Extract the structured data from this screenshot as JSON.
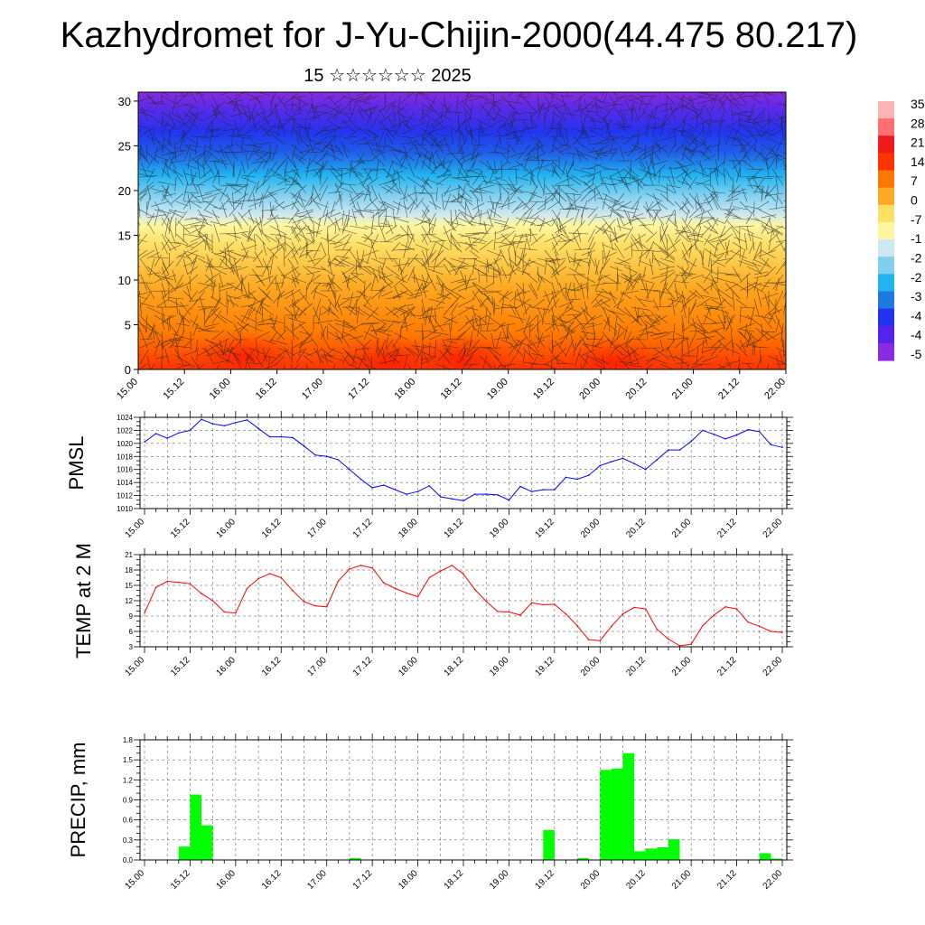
{
  "header": {
    "title": "Kazhydromet for J-Yu-Chijin-2000(44.475 80.217)",
    "subtitle": "15 ☆☆☆☆☆☆ 2025"
  },
  "colors": {
    "pmsl_line": "#0000ff",
    "temp_line": "#ff0000",
    "precip_bar": "#00ff00",
    "colorbar": [
      "#ffb3b3",
      "#ff7070",
      "#ee1a1a",
      "#ff3300",
      "#ff7700",
      "#ffaa22",
      "#ffe066",
      "#fff6a0",
      "#cce8f0",
      "#7fd0f0",
      "#22b4f0",
      "#1e7ae0",
      "#2233f0",
      "#5522ee",
      "#8a2be2"
    ]
  },
  "time_labels": [
    "15.00",
    "15.12",
    "16.00",
    "16.12",
    "17.00",
    "17.12",
    "18.00",
    "18.12",
    "19.00",
    "19.12",
    "20.00",
    "20.12",
    "21.00",
    "21.12",
    "22.00"
  ],
  "chart_data": [
    {
      "type": "heatmap",
      "title": "",
      "ylabel": "",
      "y_ticks": [
        0,
        5,
        10,
        15,
        20,
        25,
        30
      ],
      "ylim": [
        0,
        31
      ],
      "colorbar_labels": [
        "35",
        "28",
        "21",
        "14",
        "7",
        "0",
        "-7",
        "-1",
        "-2",
        "-2",
        "-3",
        "-4",
        "-4",
        "-5"
      ],
      "overlay": "wind barbs"
    },
    {
      "type": "line",
      "ylabel": "PMSL",
      "ylim": [
        1010,
        1024
      ],
      "y_ticks": [
        1010,
        1012,
        1014,
        1016,
        1018,
        1020,
        1022,
        1024
      ],
      "x": [
        0,
        3,
        6,
        9,
        12,
        15,
        18,
        21,
        24,
        27,
        30,
        33,
        36,
        39,
        42,
        45,
        48,
        51,
        54,
        57,
        60,
        63,
        66,
        69,
        72,
        75,
        78,
        81,
        84,
        87,
        90,
        93,
        96,
        99,
        102,
        105,
        108,
        111,
        114,
        117,
        120,
        123,
        126,
        129,
        132,
        135,
        138,
        141,
        144,
        147,
        150,
        153,
        156,
        159,
        162,
        165,
        168
      ],
      "values": [
        1020.2,
        1021.5,
        1020.8,
        1021.6,
        1022,
        1023.7,
        1023,
        1022.7,
        1023.2,
        1023.6,
        1022.3,
        1021,
        1021,
        1020.9,
        1019.6,
        1018.2,
        1018,
        1017.5,
        1016,
        1014.5,
        1013.2,
        1013.6,
        1012.9,
        1012.2,
        1012.6,
        1013.5,
        1011.8,
        1011.5,
        1011.2,
        1012.2,
        1012.2,
        1012.1,
        1011.3,
        1013.4,
        1012.6,
        1012.9,
        1012.9,
        1014.8,
        1014.5,
        1015.1,
        1016.6,
        1017.2,
        1017.7,
        1016.9,
        1016,
        1017.5,
        1019,
        1019,
        1020.3,
        1022,
        1021.4,
        1020.7,
        1021.3,
        1022.1,
        1021.8,
        1019.8,
        1019.4
      ],
      "grid": true
    },
    {
      "type": "line",
      "ylabel": "TEMP at 2 M",
      "ylim": [
        3,
        21
      ],
      "y_ticks": [
        3,
        6,
        9,
        12,
        15,
        18,
        21
      ],
      "x": [
        0,
        3,
        6,
        9,
        12,
        15,
        18,
        21,
        24,
        27,
        30,
        33,
        36,
        39,
        42,
        45,
        48,
        51,
        54,
        57,
        60,
        63,
        66,
        69,
        72,
        75,
        78,
        81,
        84,
        87,
        90,
        93,
        96,
        99,
        102,
        105,
        108,
        111,
        114,
        117,
        120,
        123,
        126,
        129,
        132,
        135,
        138,
        141,
        144,
        147,
        150,
        153,
        156,
        159,
        162,
        165,
        168
      ],
      "values": [
        9.6,
        14.6,
        15.8,
        15.6,
        15.3,
        13.4,
        12,
        9.8,
        9.6,
        14.4,
        16.3,
        17.3,
        16.5,
        14,
        11.8,
        11,
        10.8,
        15.8,
        18.2,
        18.9,
        18.4,
        15.5,
        14.4,
        13.5,
        12.8,
        16.5,
        17.8,
        18.9,
        17.2,
        14.2,
        11.9,
        9.9,
        9.8,
        9.2,
        11.6,
        11.2,
        11.3,
        9.4,
        7.1,
        4.4,
        4.2,
        7,
        9.4,
        10.7,
        10.4,
        6.4,
        4.5,
        3.2,
        3.5,
        7.1,
        9.2,
        10.8,
        10.4,
        7.8,
        7,
        6,
        5.8
      ],
      "grid": true
    },
    {
      "type": "bar",
      "ylabel": "PRECIP, mm",
      "ylim": [
        0,
        1.8
      ],
      "y_ticks": [
        "0.0",
        "0.3",
        "0.6",
        "0.9",
        "1.2",
        "1.5",
        "1.8"
      ],
      "x": [
        0,
        3,
        6,
        9,
        12,
        15,
        18,
        21,
        24,
        27,
        30,
        33,
        36,
        39,
        42,
        45,
        48,
        51,
        54,
        57,
        60,
        63,
        66,
        69,
        72,
        75,
        78,
        81,
        84,
        87,
        90,
        93,
        96,
        99,
        102,
        105,
        108,
        111,
        114,
        117,
        120,
        123,
        126,
        129,
        132,
        135,
        138,
        141,
        144,
        147,
        150,
        153,
        156,
        159,
        162,
        165
      ],
      "values": [
        0,
        0,
        0,
        0.2,
        0.98,
        0.52,
        0,
        0,
        0,
        0,
        0,
        0,
        0,
        0,
        0,
        0,
        0,
        0,
        0.03,
        0,
        0,
        0,
        0,
        0,
        0,
        0,
        0,
        0,
        0,
        0,
        0,
        0,
        0,
        0,
        0,
        0.45,
        0,
        0,
        0.03,
        0,
        1.35,
        1.37,
        1.6,
        0.13,
        0.17,
        0.19,
        0.31,
        0,
        0,
        0,
        0,
        0,
        0,
        0,
        0.1,
        0.02
      ],
      "grid": true
    }
  ]
}
